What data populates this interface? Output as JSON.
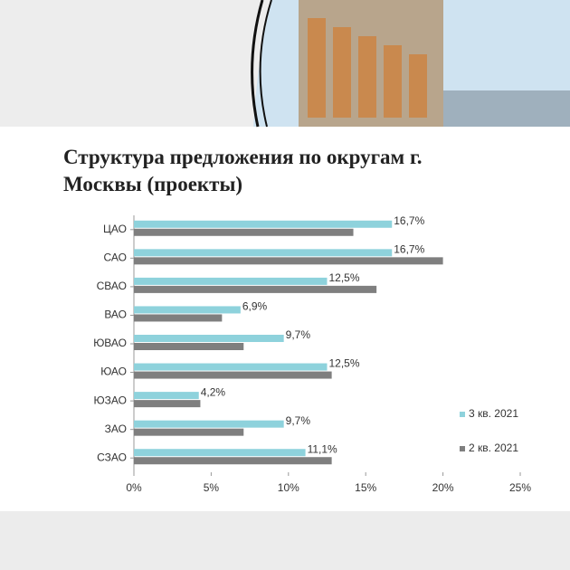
{
  "chart_data": {
    "type": "bar",
    "orientation": "horizontal",
    "title": "Структура предложения по округам г. Москвы (проекты)",
    "categories": [
      "ЦАО",
      "САО",
      "СВАО",
      "ВАО",
      "ЮВАО",
      "ЮАО",
      "ЮЗАО",
      "ЗАО",
      "СЗАО"
    ],
    "series": [
      {
        "name": "3 кв. 2021",
        "color": "#8ed2dc",
        "values": [
          16.7,
          16.7,
          12.5,
          6.9,
          9.7,
          12.5,
          4.2,
          9.7,
          11.1
        ],
        "value_labels": [
          "16,7%",
          "16,7%",
          "12,5%",
          "6,9%",
          "9,7%",
          "12,5%",
          "4,2%",
          "9,7%",
          "11,1%"
        ]
      },
      {
        "name": "2 кв. 2021",
        "color": "#7f7f7f",
        "values": [
          14.2,
          20.0,
          15.7,
          5.7,
          7.1,
          12.8,
          4.3,
          7.1,
          12.8
        ]
      }
    ],
    "xlim": [
      0,
      25
    ],
    "xticks": [
      {
        "value": 0,
        "label": "0%"
      },
      {
        "value": 5,
        "label": "5%"
      },
      {
        "value": 10,
        "label": "10%"
      },
      {
        "value": 15,
        "label": "15%"
      },
      {
        "value": 20,
        "label": "20%"
      },
      {
        "value": 25,
        "label": "25%"
      }
    ],
    "legend": "right"
  }
}
